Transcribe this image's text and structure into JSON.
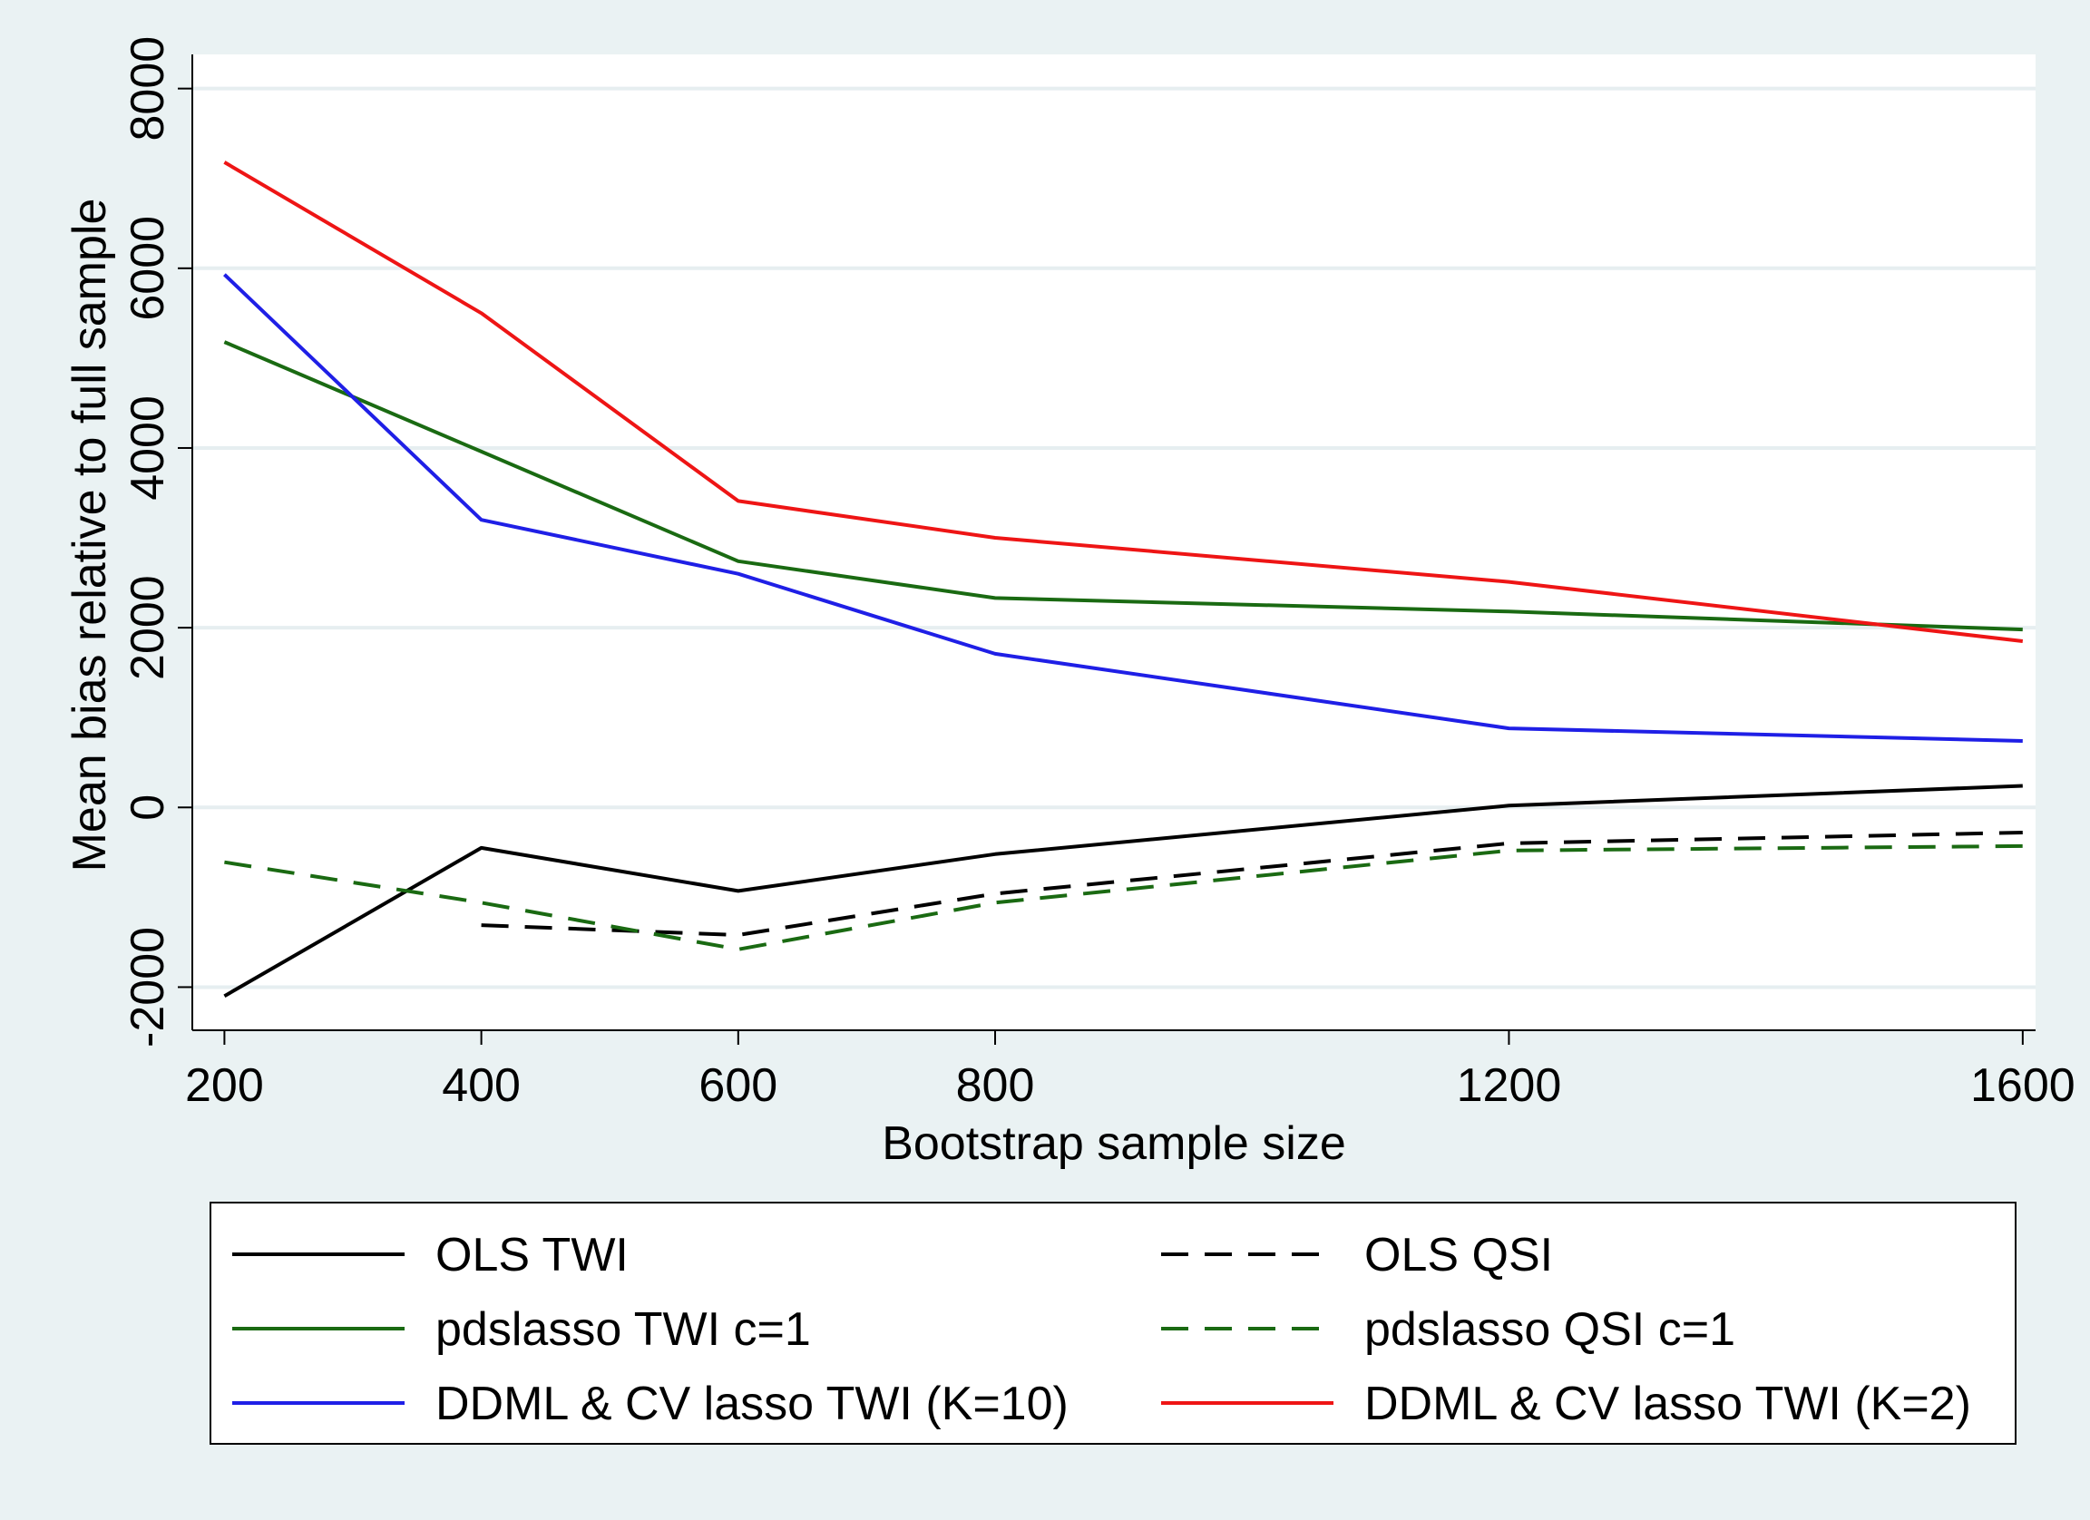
{
  "chart_data": {
    "type": "line",
    "xlabel": "Bootstrap sample size",
    "ylabel": "Mean bias relative to full sample",
    "x_ticks": [
      200,
      400,
      600,
      800,
      1200,
      1600
    ],
    "x_tick_labels": [
      "200",
      "400",
      "600",
      "800",
      "1200",
      "1600"
    ],
    "y_ticks": [
      -2000,
      0,
      2000,
      4000,
      6000,
      8000
    ],
    "y_tick_labels": [
      "-2000",
      "0",
      "2000",
      "4000",
      "6000",
      "8000"
    ],
    "xlim": [
      175,
      1610
    ],
    "ylim": [
      -2480,
      8380
    ],
    "grid": true,
    "legend_position": "bottom",
    "x": [
      200,
      400,
      600,
      800,
      1200,
      1600
    ],
    "series": [
      {
        "name": "OLS TWI",
        "color": "#000000",
        "dash": "solid",
        "values": [
          -2100,
          -450,
          -930,
          -520,
          20,
          240
        ]
      },
      {
        "name": "OLS QSI",
        "color": "#000000",
        "dash": "dashed",
        "values": [
          null,
          -1310,
          -1420,
          -960,
          -400,
          -280
        ]
      },
      {
        "name": "pdslasso TWI c=1",
        "color": "#1a6a12",
        "dash": "solid",
        "values": [
          5180,
          3960,
          2740,
          2330,
          2180,
          1980
        ]
      },
      {
        "name": "pdslasso QSI c=1",
        "color": "#1a6a12",
        "dash": "dashed",
        "values": [
          -610,
          -1060,
          -1580,
          -1060,
          -480,
          -430
        ]
      },
      {
        "name": "DDML & CV lasso TWI (K=10)",
        "color": "#1f1fe6",
        "dash": "solid",
        "values": [
          5930,
          3200,
          2600,
          1710,
          880,
          740
        ]
      },
      {
        "name": "DDML & CV lasso TWI (K=2)",
        "color": "#ee1515",
        "dash": "solid",
        "values": [
          7180,
          5500,
          3410,
          3000,
          2510,
          1850
        ]
      }
    ]
  }
}
